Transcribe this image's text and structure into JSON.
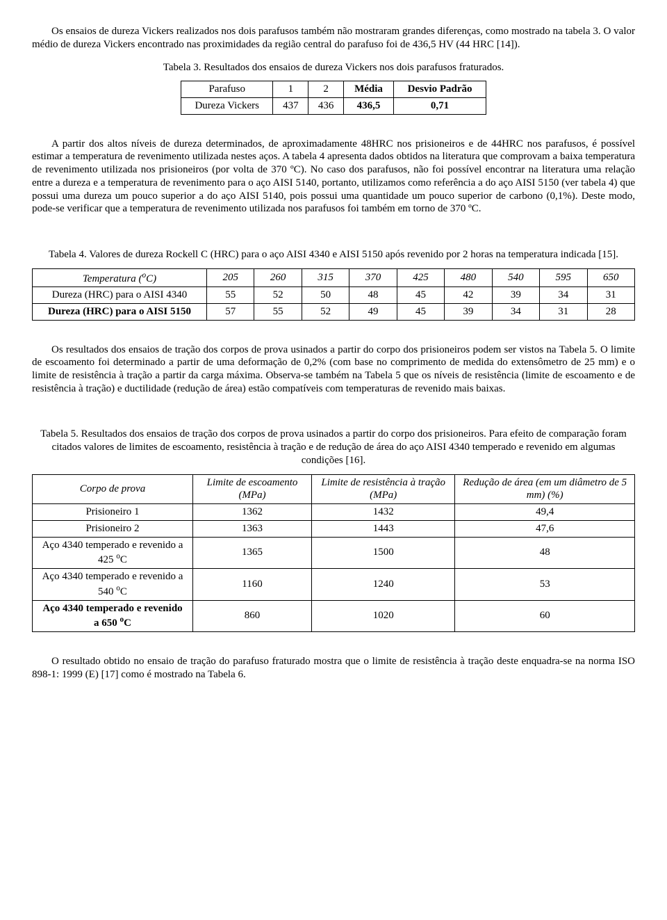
{
  "paragraphs": {
    "p1": "Os ensaios de dureza Vickers realizados nos dois parafusos também não mostraram grandes diferenças, como mostrado na tabela 3. O valor médio de dureza Vickers encontrado nas proximidades da região central do parafuso foi de 436,5 HV (44 HRC [14]).",
    "p2": "A partir dos altos níveis de dureza determinados, de aproximadamente 48HRC nos prisioneiros e de 44HRC nos parafusos, é possível estimar a temperatura de revenimento utilizada nestes aços. A tabela 4 apresenta dados obtidos na literatura que comprovam a baixa temperatura de revenimento utilizada nos prisioneiros (por volta de 370 ºC). No caso dos parafusos, não foi possível encontrar na literatura uma relação entre a dureza e a temperatura de revenimento para o aço AISI 5140, portanto, utilizamos como referência a do aço AISI 5150 (ver tabela 4) que possui uma dureza um pouco superior a do aço AISI 5140, pois possui uma quantidade um pouco superior de carbono (0,1%). Deste modo, pode-se verificar que a temperatura de revenimento utilizada nos parafusos foi também em torno de 370 ºC.",
    "p3": "Os resultados dos ensaios de tração dos corpos de prova usinados a partir do corpo dos prisioneiros podem ser vistos na Tabela 5. O limite de escoamento foi determinado a partir de uma deformação de 0,2% (com base no comprimento de medida do extensômetro de 25 mm) e o limite de resistência à tração a partir da carga máxima. Observa-se também na Tabela 5 que os níveis de resistência (limite de escoamento e de resistência à tração) e ductilidade (redução de área) estão compatíveis com temperaturas de revenido mais baixas.",
    "p4": "O resultado obtido no ensaio de tração do parafuso fraturado mostra que o limite de resistência à tração deste enquadra-se na norma ISO 898-1: 1999 (E) [17] como é mostrado na Tabela 6."
  },
  "table3": {
    "caption": "Tabela 3. Resultados dos ensaios de dureza Vickers nos dois parafusos fraturados.",
    "header": {
      "c0": "Parafuso",
      "c1": "1",
      "c2": "2",
      "c3": "Média",
      "c4": "Desvio Padrão"
    },
    "row": {
      "c0": "Dureza Vickers",
      "c1": "437",
      "c2": "436",
      "c3": "436,5",
      "c4": "0,71"
    }
  },
  "table4": {
    "caption": "Tabela 4. Valores de dureza Rockell C (HRC) para o aço AISI 4340 e AISI 5150 após revenido por 2 horas na temperatura indicada [15].",
    "header_label_pre": "Temperatura (",
    "header_label_sup": "o",
    "header_label_post": "C)",
    "temps": {
      "t1": "205",
      "t2": "260",
      "t3": "315",
      "t4": "370",
      "t5": "425",
      "t6": "480",
      "t7": "540",
      "t8": "595",
      "t9": "650"
    },
    "row1_label": "Dureza (HRC) para o AISI 4340",
    "row1": {
      "v1": "55",
      "v2": "52",
      "v3": "50",
      "v4": "48",
      "v5": "45",
      "v6": "42",
      "v7": "39",
      "v8": "34",
      "v9": "31"
    },
    "row2_label": "Dureza (HRC) para o AISI 5150",
    "row2": {
      "v1": "57",
      "v2": "55",
      "v3": "52",
      "v4": "49",
      "v5": "45",
      "v6": "39",
      "v7": "34",
      "v8": "31",
      "v9": "28"
    }
  },
  "table5": {
    "caption": "Tabela 5. Resultados dos ensaios de tração dos corpos de prova usinados a partir do corpo dos prisioneiros. Para efeito de comparação foram citados valores de limites de escoamento, resistência à tração e de redução de área do aço AISI 4340 temperado e revenido em algumas condições [16].",
    "header": {
      "c0": "Corpo de prova",
      "c1": "Limite de escoamento (MPa)",
      "c2": "Limite de resistência à tração (MPa)",
      "c3": "Redução de área (em um diâmetro de 5 mm) (%)"
    },
    "rows": {
      "r1": {
        "c0": "Prisioneiro 1",
        "c1": "1362",
        "c2": "1432",
        "c3": "49,4"
      },
      "r2": {
        "c0": "Prisioneiro 2",
        "c1": "1363",
        "c2": "1443",
        "c3": "47,6"
      },
      "r3": {
        "c0_pre": "Aço 4340 temperado e revenido a 425 ",
        "c0_sup": "o",
        "c0_post": "C",
        "c1": "1365",
        "c2": "1500",
        "c3": "48"
      },
      "r4": {
        "c0_pre": "Aço 4340 temperado e revenido a 540 ",
        "c0_sup": "o",
        "c0_post": "C",
        "c1": "1160",
        "c2": "1240",
        "c3": "53"
      },
      "r5": {
        "c0_pre": "Aço 4340 temperado e revenido a 650 ",
        "c0_sup": "o",
        "c0_post": "C",
        "c1": "860",
        "c2": "1020",
        "c3": "60"
      }
    }
  }
}
